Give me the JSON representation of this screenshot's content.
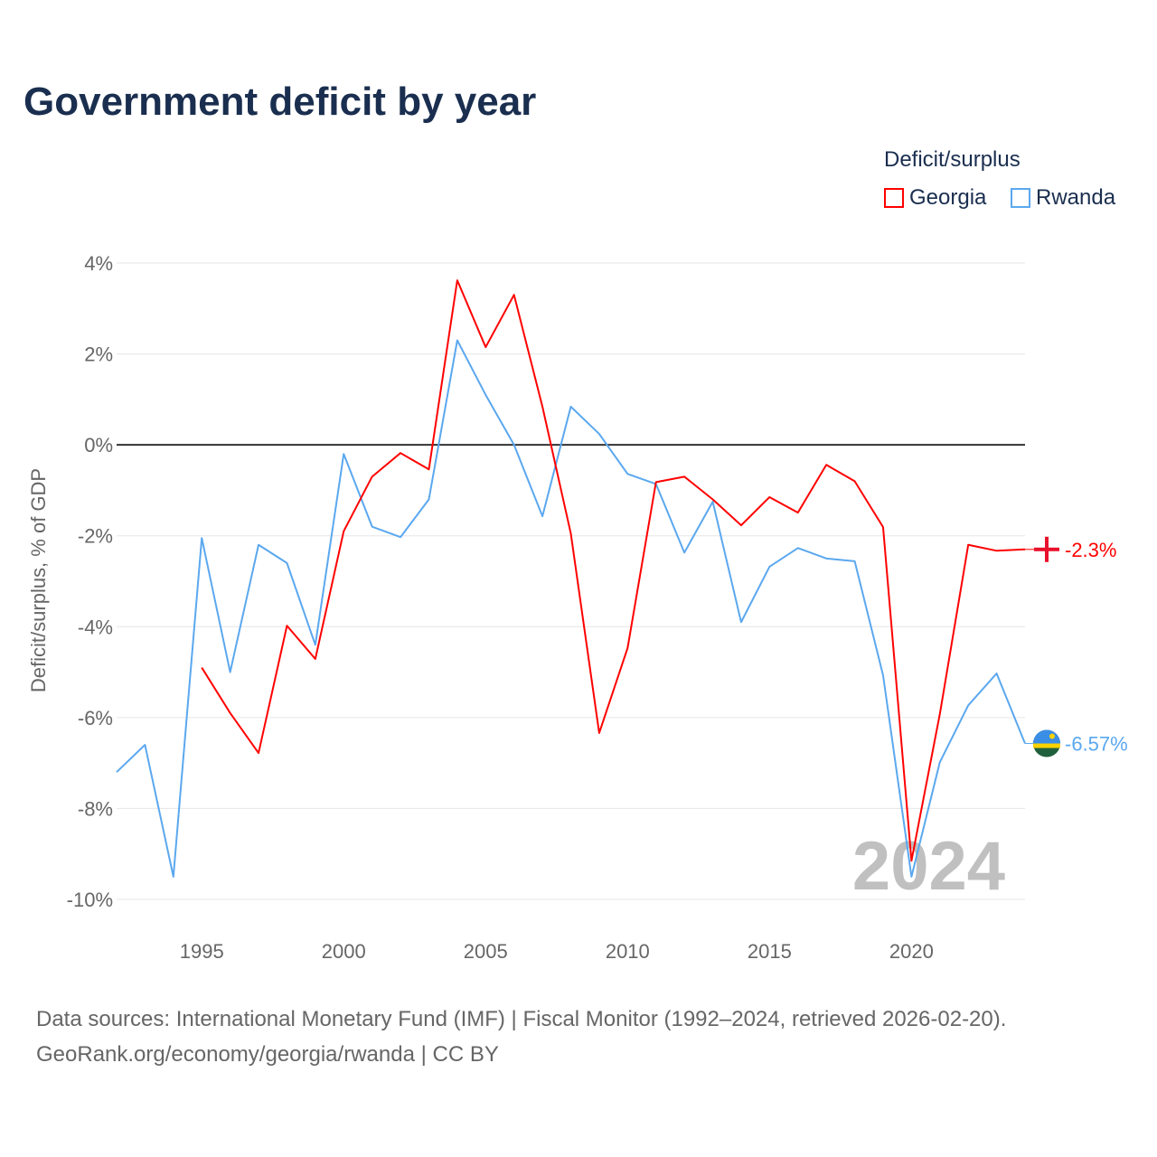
{
  "title": "Government deficit by year",
  "legend": {
    "title": "Deficit/surplus",
    "items": [
      {
        "name": "Georgia",
        "color": "#ff0000"
      },
      {
        "name": "Rwanda",
        "color": "#5ba8ef"
      }
    ]
  },
  "source": {
    "line1": "Data sources: International Monetary Fund (IMF) | Fiscal Monitor (1992–2024, retrieved 2026-02-20).",
    "line2": "GeoRank.org/economy/georgia/rwanda | CC BY"
  },
  "chart_data": {
    "type": "line",
    "ylabel": "Deficit/surplus, % of GDP",
    "ylim": [
      -10,
      4
    ],
    "xlim": [
      1992,
      2024
    ],
    "yticks": [
      "4%",
      "2%",
      "0%",
      "-2%",
      "-4%",
      "-6%",
      "-8%",
      "-10%"
    ],
    "ytick_values": [
      4,
      2,
      0,
      -2,
      -4,
      -6,
      -8,
      -10
    ],
    "xticks": [
      "1995",
      "2000",
      "2005",
      "2010",
      "2015",
      "2020"
    ],
    "xtick_values": [
      1995,
      2000,
      2005,
      2010,
      2015,
      2020
    ],
    "watermark": "2024",
    "series": [
      {
        "name": "Georgia",
        "color": "#ff0000",
        "start": 1995,
        "end_label": "-2.3%",
        "icon": "georgia-flag-icon",
        "values": [
          -4.9,
          -5.9,
          -6.78,
          -3.98,
          -4.71,
          -1.9,
          -0.7,
          -0.18,
          -0.54,
          3.62,
          2.15,
          3.3,
          0.84,
          -1.95,
          -6.34,
          -4.47,
          -0.82,
          -0.7,
          -1.2,
          -1.77,
          -1.15,
          -1.49,
          -0.44,
          -0.8,
          -1.81,
          -9.15,
          -5.92,
          -2.2,
          -2.33,
          -2.3
        ]
      },
      {
        "name": "Rwanda",
        "color": "#5ba8ef",
        "start": 1992,
        "end_label": "-6.57%",
        "icon": "rwanda-flag-icon",
        "values": [
          -7.2,
          -6.6,
          -9.5,
          -2.05,
          -5.0,
          -2.2,
          -2.6,
          -4.4,
          -0.2,
          -1.8,
          -2.03,
          -1.2,
          2.3,
          1.1,
          0.0,
          -1.57,
          0.84,
          0.24,
          -0.64,
          -0.86,
          -2.37,
          -1.25,
          -3.9,
          -2.68,
          -2.27,
          -2.5,
          -2.56,
          -5.07,
          -9.5,
          -6.98,
          -5.73,
          -5.03,
          -6.57
        ]
      }
    ]
  }
}
